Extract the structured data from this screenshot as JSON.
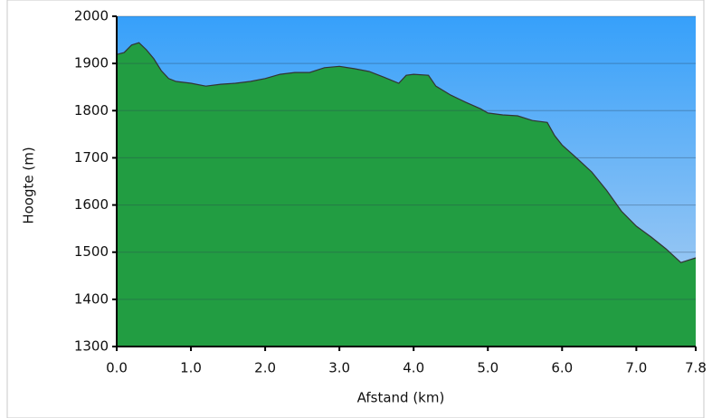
{
  "chart_data": {
    "type": "area",
    "x_label": "Afstand   (km)",
    "y_label": "Hoogte (m)",
    "x": [
      0,
      0.1,
      0.2,
      0.3,
      0.4,
      0.5,
      0.6,
      0.7,
      0.8,
      1.0,
      1.2,
      1.4,
      1.6,
      1.8,
      2.0,
      2.2,
      2.4,
      2.6,
      2.8,
      3.0,
      3.2,
      3.4,
      3.6,
      3.8,
      3.9,
      4.0,
      4.2,
      4.3,
      4.5,
      4.7,
      4.9,
      5.0,
      5.2,
      5.4,
      5.6,
      5.8,
      5.9,
      6.0,
      6.2,
      6.4,
      6.6,
      6.8,
      7.0,
      7.2,
      7.4,
      7.6,
      7.8
    ],
    "values": [
      1919,
      1923,
      1939,
      1944,
      1929,
      1910,
      1885,
      1868,
      1862,
      1858,
      1852,
      1856,
      1858,
      1862,
      1868,
      1877,
      1881,
      1881,
      1891,
      1894,
      1889,
      1883,
      1871,
      1858,
      1875,
      1877,
      1875,
      1852,
      1833,
      1818,
      1804,
      1795,
      1791,
      1789,
      1779,
      1775,
      1747,
      1727,
      1699,
      1670,
      1631,
      1587,
      1555,
      1532,
      1507,
      1478,
      1488
    ],
    "color": "#22a046",
    "xlim": [
      0,
      7.8
    ],
    "ylim": [
      1300,
      2000
    ],
    "xticks": [
      {
        "value": 0,
        "label": "0.0"
      },
      {
        "value": 1,
        "label": "1.0"
      },
      {
        "value": 2,
        "label": "2.0"
      },
      {
        "value": 3,
        "label": "3.0"
      },
      {
        "value": 4,
        "label": "4.0"
      },
      {
        "value": 5,
        "label": "5.0"
      },
      {
        "value": 6,
        "label": "6.0"
      },
      {
        "value": 7,
        "label": "7.0"
      },
      7.8
    ],
    "yticks": [
      1300,
      1400,
      1500,
      1600,
      1700,
      1800,
      1900,
      2000
    ],
    "grid": true
  }
}
